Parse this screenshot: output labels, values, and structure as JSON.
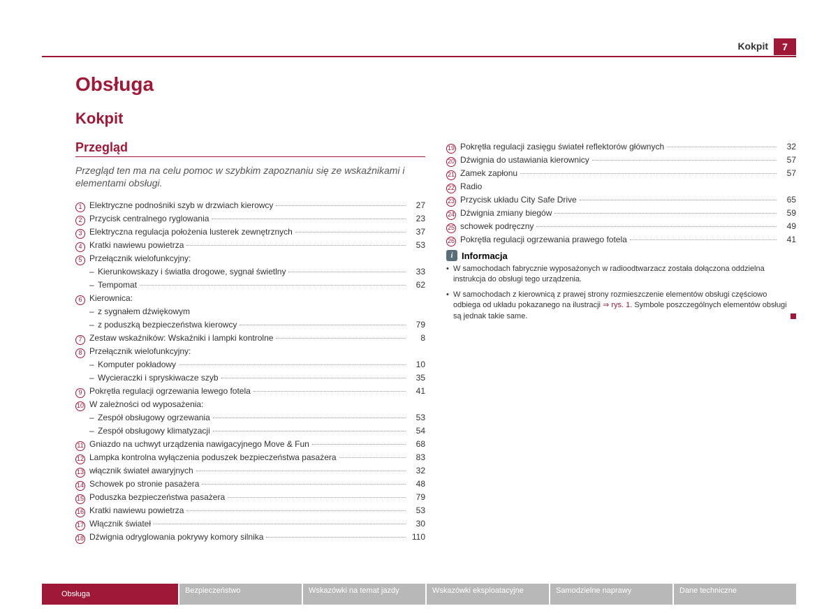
{
  "header": {
    "section": "Kokpit",
    "page": "7"
  },
  "h1": "Obsługa",
  "h2": "Kokpit",
  "h3": "Przegląd",
  "intro": "Przegląd ten ma na celu pomoc w szybkim zapoznaniu się ze wskaźnikami i elementami obsługi.",
  "left": [
    {
      "n": "1",
      "t": "Elektryczne podnośniki szyb w drzwiach kierowcy",
      "p": "27"
    },
    {
      "n": "2",
      "t": "Przycisk centralnego ryglowania",
      "p": "23"
    },
    {
      "n": "3",
      "t": "Elektryczna regulacja położenia lusterek zewnętrznych",
      "p": "37"
    },
    {
      "n": "4",
      "t": "Kratki nawiewu powietrza",
      "p": "53"
    },
    {
      "n": "5",
      "t": "Przełącznik wielofunkcyjny:"
    },
    {
      "sub": true,
      "t": "Kierunkowskazy i światła drogowe, sygnał świetlny",
      "p": "33"
    },
    {
      "sub": true,
      "t": "Tempomat",
      "p": "62"
    },
    {
      "n": "6",
      "t": "Kierownica:"
    },
    {
      "sub": true,
      "t": "z sygnałem dźwiękowym"
    },
    {
      "sub": true,
      "t": "z poduszką bezpieczeństwa kierowcy",
      "p": "79"
    },
    {
      "n": "7",
      "t": "Zestaw wskaźników: Wskaźniki i lampki kontrolne",
      "p": "8"
    },
    {
      "n": "8",
      "t": "Przełącznik wielofunkcyjny:"
    },
    {
      "sub": true,
      "t": "Komputer pokładowy",
      "p": "10"
    },
    {
      "sub": true,
      "t": "Wycieraczki i spryskiwacze szyb",
      "p": "35"
    },
    {
      "n": "9",
      "t": "Pokrętła regulacji ogrzewania lewego fotela",
      "p": "41"
    },
    {
      "n": "10",
      "t": "W zależności od wyposażenia:"
    },
    {
      "sub": true,
      "t": "Zespół obsługowy ogrzewania",
      "p": "53"
    },
    {
      "sub": true,
      "t": "Zespół obsługowy klimatyzacji",
      "p": "54"
    },
    {
      "n": "11",
      "t": "Gniazdo na uchwyt urządzenia nawigacyjnego Move & Fun",
      "p": "68"
    },
    {
      "n": "12",
      "t": "Lampka kontrolna wyłączenia poduszek bezpieczeństwa pasażera",
      "p": "83"
    },
    {
      "n": "13",
      "t": "włącznik świateł awaryjnych",
      "p": "32"
    },
    {
      "n": "14",
      "t": "Schowek po stronie pasażera",
      "p": "48"
    },
    {
      "n": "15",
      "t": "Poduszka bezpieczeństwa pasażera",
      "p": "79"
    },
    {
      "n": "16",
      "t": "Kratki nawiewu powietrza",
      "p": "53"
    },
    {
      "n": "17",
      "t": "Włącznik świateł",
      "p": "30"
    },
    {
      "n": "18",
      "t": "Dźwignia odryglowania pokrywy komory silnika",
      "p": "110"
    }
  ],
  "right": [
    {
      "n": "19",
      "t": "Pokrętła regulacji zasięgu świateł reflektorów głównych",
      "p": "32"
    },
    {
      "n": "20",
      "t": "Dźwignia do ustawiania kierownicy",
      "p": "57"
    },
    {
      "n": "21",
      "t": "Zamek zapłonu",
      "p": "57"
    },
    {
      "n": "22",
      "t": "Radio"
    },
    {
      "n": "23",
      "t": "Przycisk układu City Safe Drive",
      "p": "65"
    },
    {
      "n": "24",
      "t": "Dźwignia zmiany biegów",
      "p": "59"
    },
    {
      "n": "25",
      "t": "schowek podręczny",
      "p": "49"
    },
    {
      "n": "26",
      "t": "Pokrętła regulacji ogrzewania prawego fotela",
      "p": "41"
    }
  ],
  "info": {
    "title": "Informacja",
    "b1": "W samochodach fabrycznie wyposażonych w radioodtwarzacz została dołączona oddzielna instrukcja do obsługi tego urządzenia.",
    "b2a": "W samochodach z kierownicą z prawej strony rozmieszczenie elementów obsługi częściowo odbiega od układu pokazanego na ilustracji ",
    "b2link": "⇒ rys. 1",
    "b2b": ". Symbole poszczególnych elementów obsługi są jednak takie same."
  },
  "tabs": [
    "Obsługa",
    "Bezpieczeństwo",
    "Wskazówki na temat jazdy",
    "Wskazówki eksploatacyjne",
    "Samodzielne naprawy",
    "Dane techniczne"
  ]
}
